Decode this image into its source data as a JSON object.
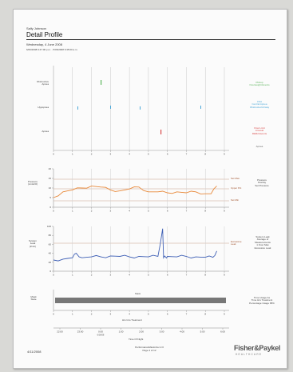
{
  "header": {
    "patient_name": "Sally Johnson",
    "title": "Detail Profile",
    "date": "Wednesday, 4 June 2008",
    "date_range": "6/06/2008 9:47:00 p.m. - 5/06/2008 6:35:00 a.m."
  },
  "events": {
    "rows": [
      "Obstructive\nApnea",
      "Hypopnea",
      "Apnea"
    ],
    "legend": [
      {
        "text": "Pickup\nOverweight Events",
        "color": "#59b359"
      },
      {
        "text": "CSA\nCentral Apnea\nObstructed Airway",
        "color": "#4aa7d8"
      },
      {
        "text": "Flow Limit\nArousal\nRERA Events",
        "color": "#d94b4b"
      },
      {
        "text": "Apnea",
        "color": "#666666"
      }
    ],
    "colors": {
      "row1": "#5fb85f",
      "row2": "#4aa7d8",
      "row3": "#d94b4b"
    }
  },
  "pressure_chart": {
    "ylabel": "Pressure\n(cmH2O)",
    "yticks": [
      "20",
      "15",
      "10",
      "5",
      "0"
    ],
    "ref_labels": [
      "Set Max",
      "Upper Pct",
      "Set Min"
    ],
    "legend": "Pressure\nOverlay\nSet Pressure",
    "color": "#e8893a"
  },
  "leak_chart": {
    "ylabel": "System Leak\n(l/min)",
    "yticks": [
      "100",
      "80",
      "60",
      "40",
      "20",
      "0"
    ],
    "ref_label": "Excessive Leak",
    "legend": "System Leak\nAverage of\nMeasurements\n1 Over Max\nExcessive Leak",
    "color": "#3e5fb5"
  },
  "usage_chart": {
    "ylabel": "Mask\nState",
    "bar_label": "Mask",
    "xlabel": "Hrs Into Treatment",
    "legend": "Time Usage As\nTime Hrs Treatment\nPercentage Usage 95%",
    "color": "#777777"
  },
  "x_axis": {
    "hours": [
      "0",
      "1",
      "2",
      "3",
      "4",
      "5",
      "6",
      "7",
      "8",
      "9"
    ],
    "clock": [
      "22:00",
      "23:00",
      "0:00",
      "1:00",
      "2:00",
      "3:00",
      "4:00",
      "5:00",
      "6:00"
    ],
    "clock_sub": [
      "",
      "",
      "6/06/08",
      "",
      "",
      "",
      "",
      "",
      ""
    ],
    "title": "Time Of Night"
  },
  "footer": {
    "date": "4/11/2008",
    "software": "PerformanceMaximizer 2.0",
    "page": "Page 4 of 12",
    "logo": "Fisher&Paykel",
    "logo_sub": "HEALTHCARE"
  },
  "chart_data": [
    {
      "type": "line",
      "title": "",
      "ylabel": "Pressure (cmH2O)",
      "ylim": [
        0,
        20
      ],
      "x": [
        0,
        0.5,
        1,
        1.5,
        2,
        2.5,
        3,
        3.5,
        4,
        4.5,
        5,
        5.5,
        6,
        6.5,
        7,
        7.5,
        8,
        8.3,
        8.6
      ],
      "values": [
        5,
        8,
        9,
        10,
        11,
        10.5,
        9,
        8.5,
        9.5,
        10.5,
        8,
        8,
        7.5,
        8,
        7.5,
        8,
        7,
        7,
        11
      ]
    },
    {
      "type": "line",
      "title": "",
      "ylabel": "System Leak (l/min)",
      "ylim": [
        0,
        100
      ],
      "x": [
        0,
        0.5,
        1,
        1.2,
        1.5,
        2,
        2.5,
        3,
        3.5,
        4,
        4.5,
        5,
        5.5,
        5.75,
        5.8,
        5.9,
        6,
        6.5,
        7,
        7.5,
        8,
        8.4,
        8.6
      ],
      "values": [
        25,
        27,
        30,
        40,
        30,
        32,
        32,
        34,
        33,
        32,
        33,
        32,
        33,
        95,
        30,
        32,
        33,
        32,
        33,
        32,
        31,
        31,
        45
      ]
    }
  ]
}
